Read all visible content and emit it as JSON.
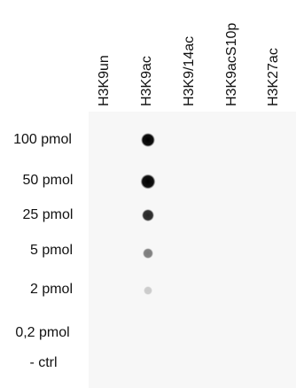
{
  "columns": [
    "H3K9un",
    "H3K9ac",
    "H3K9/14ac",
    "H3K9acS10p",
    "H3K27ac"
  ],
  "rows": [
    "100 pmol",
    "50 pmol",
    "25 pmol",
    "5 pmol",
    "2 pmol",
    "0,2 pmol",
    "- ctrl"
  ]
}
